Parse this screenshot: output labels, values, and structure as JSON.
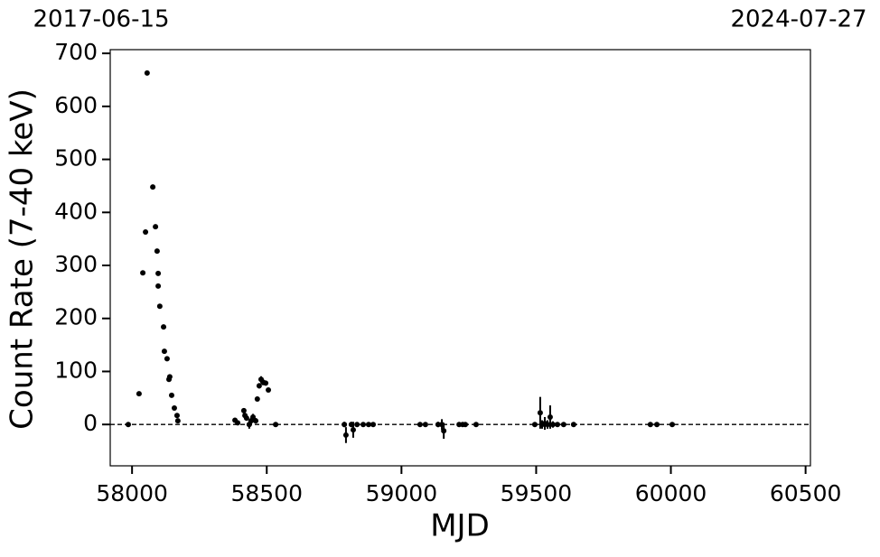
{
  "chart_data": {
    "type": "scatter",
    "top_labels": [
      "2017-06-15",
      "2024-07-27"
    ],
    "xlabel": "MJD",
    "ylabel": "Count Rate (7-40 keV)",
    "xlim": [
      57919,
      60518
    ],
    "ylim": [
      -78,
      707
    ],
    "xticks": [
      58000,
      58500,
      59000,
      59500,
      60000,
      60500
    ],
    "yticks": [
      0,
      100,
      200,
      300,
      400,
      500,
      600,
      700
    ],
    "reference_line": 0,
    "color": "#000000",
    "x": [
      57986,
      58026,
      58040,
      58050,
      58056,
      58077,
      58087,
      58093,
      58097,
      58097,
      58103,
      58117,
      58120,
      58130,
      58140,
      58137,
      58147,
      58157,
      58167,
      58170,
      58382,
      58392,
      58415,
      58419,
      58425,
      58435,
      58442,
      58449,
      58459,
      58465,
      58472,
      58479,
      58486,
      58496,
      58506,
      58533,
      58788,
      58794,
      58814,
      58821,
      58835,
      58858,
      58878,
      58895,
      59069,
      59089,
      59136,
      59150,
      59157,
      59214,
      59227,
      59237,
      59277,
      59495,
      59515,
      59522,
      59532,
      59542,
      59552,
      59562,
      59579,
      59602,
      59639,
      59924,
      59948,
      60005
    ],
    "values": [
      0,
      58,
      286,
      363,
      663,
      448,
      373,
      327,
      285,
      261,
      223,
      184,
      138,
      124,
      90,
      85,
      55,
      31,
      17,
      7,
      8,
      3,
      26,
      17,
      12,
      0,
      7,
      14,
      7,
      48,
      73,
      85,
      80,
      78,
      65,
      0,
      0,
      -20,
      0,
      -10,
      0,
      0,
      0,
      0,
      0,
      0,
      0,
      0,
      -12,
      0,
      0,
      0,
      0,
      0,
      22,
      0,
      2,
      0,
      14,
      0,
      0,
      0,
      0,
      0,
      0,
      0
    ],
    "errors": [
      2,
      3,
      4,
      4,
      4,
      4,
      4,
      4,
      4,
      4,
      4,
      4,
      4,
      4,
      4,
      4,
      4,
      4,
      4,
      4,
      3,
      3,
      5,
      5,
      5,
      8,
      6,
      6,
      5,
      4,
      5,
      6,
      6,
      4,
      4,
      2,
      5,
      15,
      5,
      15,
      4,
      4,
      4,
      4,
      3,
      3,
      5,
      10,
      15,
      4,
      4,
      4,
      2,
      4,
      30,
      8,
      12,
      8,
      22,
      6,
      4,
      3,
      2,
      3,
      3,
      2
    ]
  }
}
